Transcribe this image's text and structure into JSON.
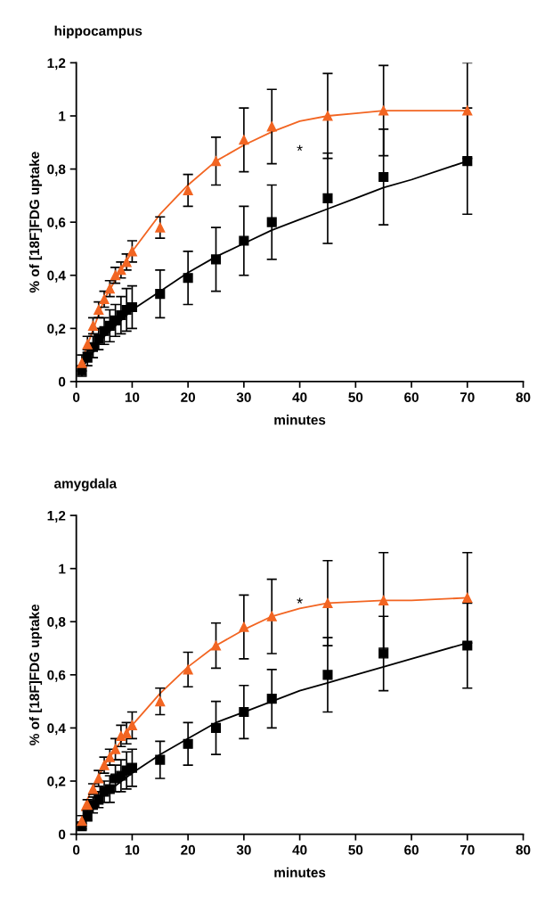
{
  "chart_data": [
    {
      "type": "scatter",
      "title": "hippocampus",
      "xlabel": "minutes",
      "ylabel": "% of [18F]FDG uptake",
      "x": [
        1,
        2,
        3,
        4,
        5,
        6,
        7,
        8,
        9,
        10,
        15,
        20,
        25,
        30,
        35,
        45,
        55,
        70
      ],
      "xlim": [
        0,
        80
      ],
      "xticks": [
        0,
        10,
        20,
        30,
        40,
        50,
        60,
        70,
        80
      ],
      "ylim": [
        0,
        1.2
      ],
      "yticks": [
        0,
        {
          "value": 0.2,
          "label": "0,2"
        },
        {
          "value": 0.4,
          "label": "0,4"
        },
        {
          "value": 0.6,
          "label": "0,6"
        },
        {
          "value": 0.8,
          "label": "0,8"
        },
        1,
        {
          "value": 1.2,
          "label": "1,2"
        }
      ],
      "grid": false,
      "annotations": [
        "*"
      ],
      "series": [
        {
          "type": "line",
          "color": "#f26522",
          "marker": "none",
          "x": [
            1,
            5,
            10,
            15,
            20,
            25,
            30,
            35,
            40,
            45,
            50,
            55,
            60,
            70
          ],
          "values": [
            0.08,
            0.31,
            0.49,
            0.63,
            0.74,
            0.83,
            0.89,
            0.94,
            0.98,
            1.0,
            1.01,
            1.02,
            1.02,
            1.02
          ]
        },
        {
          "type": "line",
          "color": "#000000",
          "marker": "none",
          "x": [
            1,
            5,
            10,
            15,
            20,
            25,
            30,
            35,
            40,
            45,
            50,
            55,
            60,
            70
          ],
          "values": [
            0.05,
            0.17,
            0.27,
            0.34,
            0.41,
            0.47,
            0.52,
            0.57,
            0.61,
            0.65,
            0.69,
            0.73,
            0.76,
            0.83
          ]
        },
        {
          "color": "#f26522",
          "marker": "triangle",
          "values": [
            0.07,
            0.14,
            0.21,
            0.27,
            0.31,
            0.35,
            0.4,
            0.42,
            0.45,
            0.49,
            0.58,
            0.72,
            0.83,
            0.91,
            0.96,
            1.0,
            1.02,
            1.02
          ],
          "errors": [
            0.03,
            0.03,
            0.03,
            0.03,
            0.03,
            0.03,
            0.03,
            0.03,
            0.03,
            0.04,
            0.04,
            0.06,
            0.09,
            0.12,
            0.14,
            0.16,
            0.17,
            0.18
          ]
        },
        {
          "color": "#000000",
          "marker": "square",
          "values": [
            0.04,
            0.09,
            0.13,
            0.16,
            0.19,
            0.21,
            0.23,
            0.25,
            0.27,
            0.28,
            0.33,
            0.39,
            0.46,
            0.53,
            0.6,
            0.69,
            0.77,
            0.83
          ],
          "errors": [
            0.02,
            0.03,
            0.04,
            0.04,
            0.05,
            0.06,
            0.06,
            0.07,
            0.08,
            0.08,
            0.09,
            0.1,
            0.12,
            0.13,
            0.14,
            0.17,
            0.18,
            0.2
          ]
        }
      ]
    },
    {
      "type": "scatter",
      "title": "amygdala",
      "xlabel": "minutes",
      "ylabel": "% of [18F]FDG uptake",
      "x": [
        1,
        2,
        3,
        4,
        5,
        6,
        7,
        8,
        9,
        10,
        15,
        20,
        25,
        30,
        35,
        45,
        55,
        70
      ],
      "xlim": [
        0,
        80
      ],
      "xticks": [
        0,
        10,
        20,
        30,
        40,
        50,
        60,
        70,
        80
      ],
      "ylim": [
        0,
        1.2
      ],
      "yticks": [
        0,
        {
          "value": 0.2,
          "label": "0,2"
        },
        {
          "value": 0.4,
          "label": "0,4"
        },
        {
          "value": 0.6,
          "label": "0,6"
        },
        {
          "value": 0.8,
          "label": "0,8"
        },
        1,
        {
          "value": 1.2,
          "label": "1,2"
        }
      ],
      "grid": false,
      "annotations": [
        "*"
      ],
      "series": [
        {
          "type": "line",
          "color": "#f26522",
          "marker": "none",
          "x": [
            1,
            5,
            10,
            15,
            20,
            25,
            30,
            35,
            40,
            45,
            55,
            60,
            70
          ],
          "values": [
            0.09,
            0.26,
            0.41,
            0.53,
            0.63,
            0.71,
            0.77,
            0.82,
            0.85,
            0.87,
            0.88,
            0.88,
            0.89
          ]
        },
        {
          "type": "line",
          "color": "#000000",
          "marker": "none",
          "x": [
            1,
            5,
            10,
            15,
            20,
            25,
            30,
            35,
            40,
            45,
            55,
            60,
            70
          ],
          "values": [
            0.04,
            0.15,
            0.23,
            0.3,
            0.36,
            0.42,
            0.46,
            0.5,
            0.54,
            0.57,
            0.63,
            0.66,
            0.72
          ]
        },
        {
          "color": "#f26522",
          "marker": "triangle",
          "values": [
            0.05,
            0.11,
            0.17,
            0.21,
            0.26,
            0.29,
            0.32,
            0.37,
            0.38,
            0.41,
            0.5,
            0.62,
            0.71,
            0.78,
            0.82,
            0.87,
            0.88,
            0.89
          ],
          "errors": [
            0.02,
            0.02,
            0.02,
            0.03,
            0.03,
            0.03,
            0.04,
            0.04,
            0.04,
            0.05,
            0.05,
            0.065,
            0.085,
            0.12,
            0.14,
            0.16,
            0.18,
            0.17
          ]
        },
        {
          "color": "#000000",
          "marker": "square",
          "values": [
            0.03,
            0.07,
            0.11,
            0.13,
            0.16,
            0.17,
            0.21,
            0.22,
            0.24,
            0.25,
            0.28,
            0.34,
            0.4,
            0.46,
            0.51,
            0.6,
            0.68,
            0.71
          ],
          "errors": [
            0.01,
            0.02,
            0.03,
            0.03,
            0.04,
            0.05,
            0.05,
            0.06,
            0.07,
            0.07,
            0.07,
            0.08,
            0.1,
            0.1,
            0.11,
            0.14,
            0.14,
            0.16
          ]
        }
      ]
    }
  ]
}
